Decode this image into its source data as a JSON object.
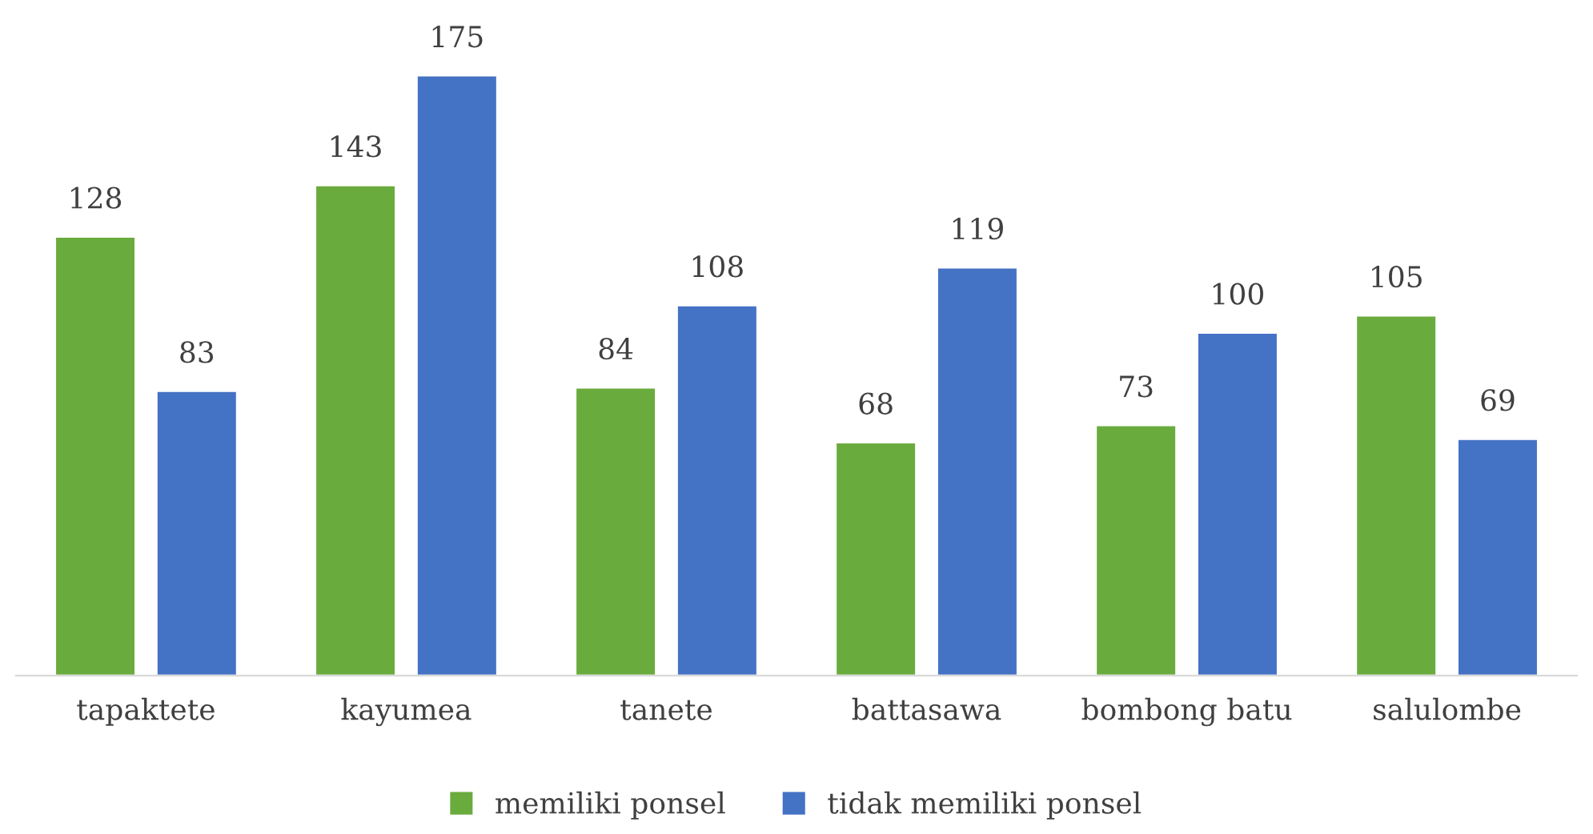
{
  "chart_data": {
    "type": "bar",
    "categories": [
      "tapaktete",
      "kayumea",
      "tanete",
      "battasawa",
      "bombong batu",
      "salulombe"
    ],
    "series": [
      {
        "name": "memiliki ponsel",
        "color": "#6aab3e",
        "values": [
          128,
          143,
          84,
          68,
          73,
          105
        ]
      },
      {
        "name": "tidak memiliki ponsel",
        "color": "#4472c4",
        "values": [
          83,
          175,
          108,
          119,
          100,
          69
        ]
      }
    ],
    "data_labels": true,
    "legend": "bottom",
    "grid": false
  }
}
